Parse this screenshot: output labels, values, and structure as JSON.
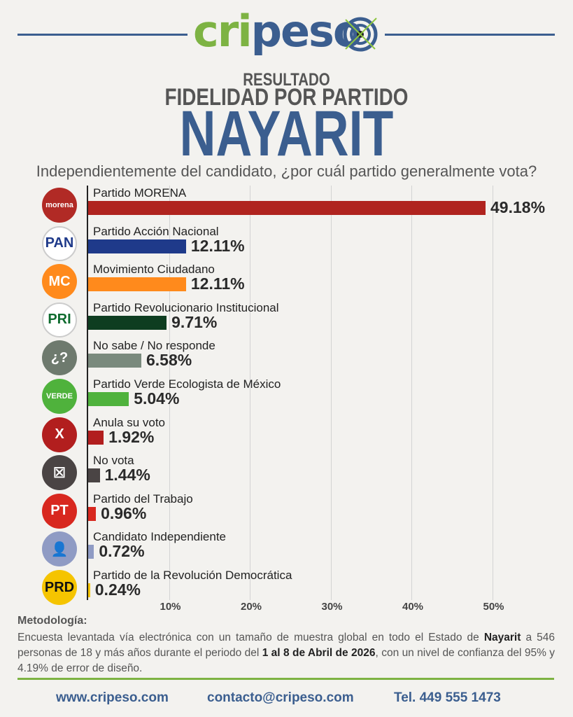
{
  "header": {
    "logo_part1": "cri",
    "logo_part2": "peso",
    "title_small": "RESULTADO",
    "title_medium": "FIDELIDAD POR PARTIDO",
    "title_large": "NAYARIT",
    "question": "Independientemente del candidato, ¿por cuál partido generalmente vota?"
  },
  "chart_data": {
    "type": "bar",
    "orientation": "horizontal",
    "categories": [
      "Partido MORENA",
      "Partido Acción Nacional",
      "Movimiento Ciudadano",
      "Partido Revolucionario Institucional",
      "No sabe / No responde",
      "Partido Verde Ecologista de México",
      "Anula su voto",
      "No vota",
      "Partido del Trabajo",
      "Candidato Independiente",
      "Partido de la Revolución Democrática"
    ],
    "values": [
      49.18,
      12.11,
      12.11,
      9.71,
      6.58,
      5.04,
      1.92,
      1.44,
      0.96,
      0.72,
      0.24
    ],
    "value_labels": [
      "49.18%",
      "12.11%",
      "12.11%",
      "9.71%",
      "6.58%",
      "5.04%",
      "1.92%",
      "1.44%",
      "0.96%",
      "0.72%",
      "0.24%"
    ],
    "colors": [
      "#b0241f",
      "#1f3a8a",
      "#ff8a1c",
      "#0e3d20",
      "#7a8a7d",
      "#4fb23c",
      "#b21e1e",
      "#4a4444",
      "#d8281f",
      "#8f9bc4",
      "#f5c400"
    ],
    "icons": [
      {
        "name": "morena-logo-icon",
        "text": "morena",
        "bg": "#b12a25"
      },
      {
        "name": "pan-logo-icon",
        "text": "PAN",
        "bg": "#ffffff"
      },
      {
        "name": "movimiento-ciudadano-logo-icon",
        "text": "MC",
        "bg": "#ff8a1c"
      },
      {
        "name": "pri-logo-icon",
        "text": "PRI",
        "bg": "#ffffff"
      },
      {
        "name": "question-icon",
        "text": "¿?",
        "bg": "#6e7a6e"
      },
      {
        "name": "verde-logo-icon",
        "text": "VERDE",
        "bg": "#4fb23c"
      },
      {
        "name": "x-annul-icon",
        "text": "X",
        "bg": "#b21e1e"
      },
      {
        "name": "ballot-box-icon",
        "text": "☒",
        "bg": "#4a4444"
      },
      {
        "name": "pt-logo-icon",
        "text": "PT",
        "bg": "#d8281f"
      },
      {
        "name": "person-icon",
        "text": "👤",
        "bg": "#8f9bc4"
      },
      {
        "name": "prd-logo-icon",
        "text": "PRD",
        "bg": "#f5c400"
      }
    ],
    "x_ticks": [
      "10%",
      "20%",
      "30%",
      "40%",
      "50%"
    ],
    "xlim": [
      0,
      50
    ],
    "grid": true
  },
  "methodology": {
    "title": "Metodología:",
    "p1": "Encuesta levantada vía electrónica con un tamaño de muestra global en todo el Estado de ",
    "b1": "Nayarit",
    "p2": " a 546 personas de 18 y más años durante el periodo del ",
    "b2": "1 al 8 de Abril de 2026",
    "p3": ", con un nivel de confianza del 95% y 4.19% de error de diseño."
  },
  "footer": {
    "website": "www.cripeso.com",
    "email": "contacto@cripeso.com",
    "phone": "Tel. 449 555 1473"
  }
}
